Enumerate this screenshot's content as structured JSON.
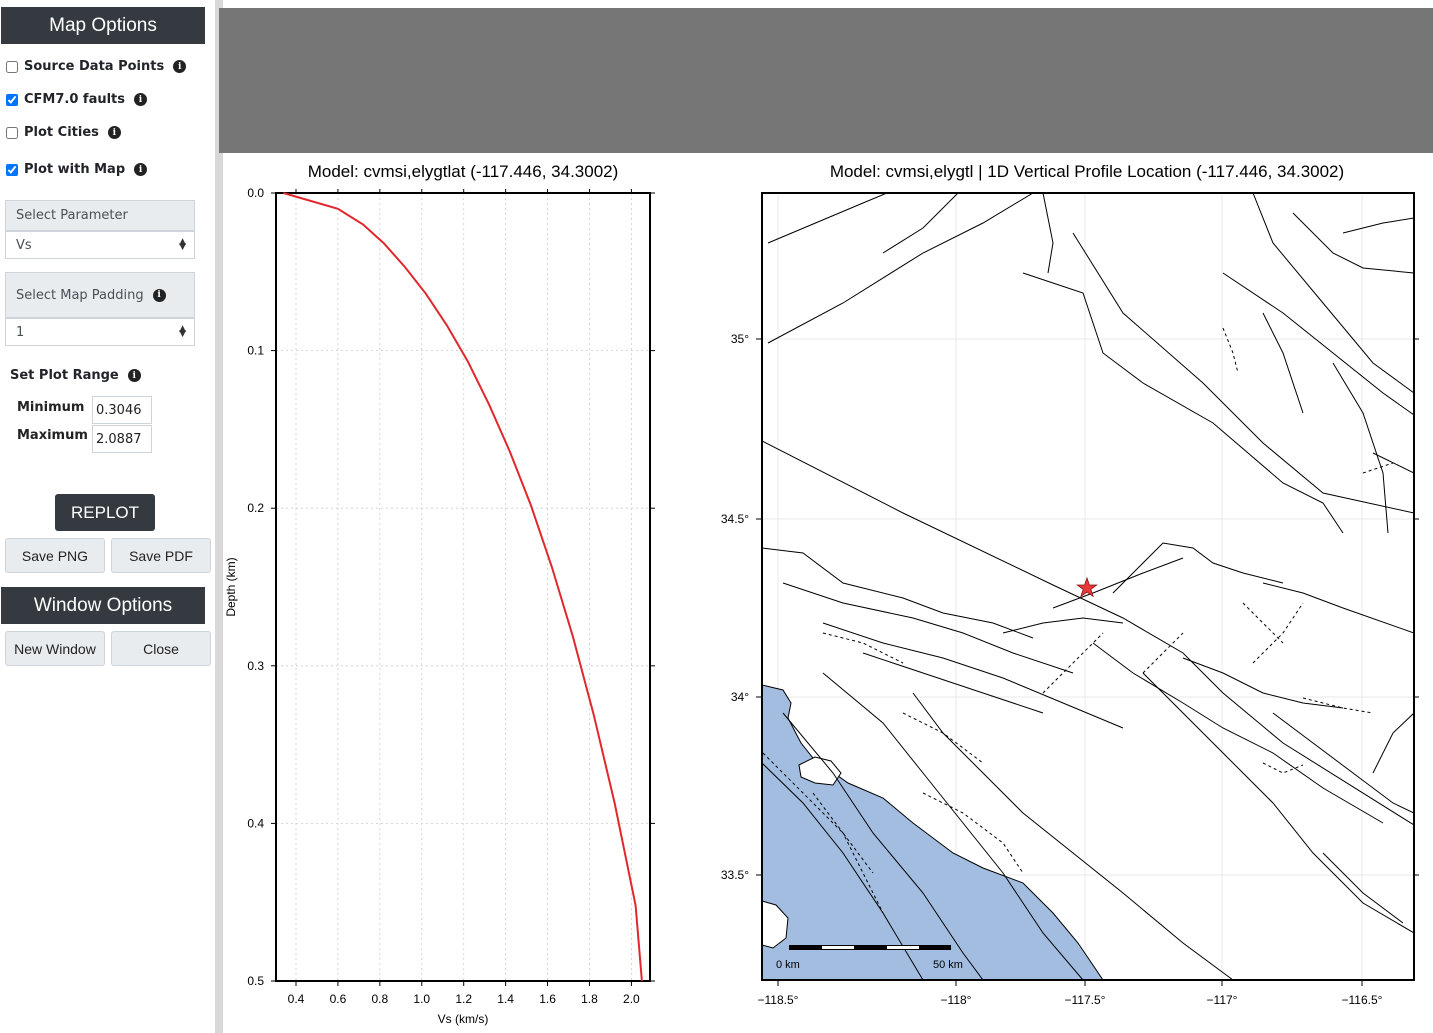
{
  "sidebar": {
    "map_options_title": "Map Options",
    "options": [
      {
        "label": "Source Data Points",
        "checked": false
      },
      {
        "label": "CFM7.0 faults",
        "checked": true
      },
      {
        "label": "Plot Cities",
        "checked": false
      },
      {
        "label": "Plot with Map",
        "checked": true
      }
    ],
    "select_parameter_label": "Select Parameter",
    "select_parameter_value": "Vs",
    "select_padding_label": "Select Map Padding",
    "select_padding_value": "1",
    "plot_range_label": "Set Plot Range",
    "minimum_label": "Minimum",
    "minimum_value": "0.3046",
    "maximum_label": "Maximum",
    "maximum_value": "2.0887",
    "replot_label": "REPLOT",
    "save_png_label": "Save PNG",
    "save_pdf_label": "Save PDF",
    "window_options_title": "Window Options",
    "new_window_label": "New Window",
    "close_label": "Close"
  },
  "colors": {
    "header_bg": "#343a40",
    "banner_bg": "#767676",
    "profile_line": "#e0282c",
    "ocean": "#a3bde0",
    "star": "#e83a3a"
  },
  "chart_data": [
    {
      "type": "line",
      "title": "Model: cvmsi,elygtlat (-117.446, 34.3002)",
      "xlabel": "Vs (km/s)",
      "ylabel": "Depth (km)",
      "xlim": [
        0.3046,
        2.0887
      ],
      "ylim": [
        0.5,
        0.0
      ],
      "x_ticks": [
        "0.4",
        "0.6",
        "0.8",
        "1.0",
        "1.2",
        "1.4",
        "1.6",
        "1.8",
        "2.0"
      ],
      "y_ticks": [
        "0.0",
        "0.1",
        "0.2",
        "0.3",
        "0.4",
        "0.5"
      ],
      "grid": true,
      "series": [
        {
          "x": [
            0.34,
            0.6,
            0.72,
            0.82,
            0.92,
            1.02,
            1.12,
            1.22,
            1.32,
            1.42,
            1.52,
            1.62,
            1.72,
            1.82,
            1.92,
            2.02,
            2.05
          ],
          "y": [
            0.0,
            0.01,
            0.02,
            0.032,
            0.047,
            0.064,
            0.084,
            0.107,
            0.134,
            0.164,
            0.198,
            0.237,
            0.281,
            0.331,
            0.387,
            0.452,
            0.5
          ]
        }
      ]
    },
    {
      "type": "map",
      "title": "Model: cvmsi,elygtl | 1D Vertical Profile Location (-117.446, 34.3002)",
      "lon_range": [
        -118.53,
        -116.33
      ],
      "lat_range": [
        33.22,
        35.41
      ],
      "lon_ticks": [
        "−118.5°",
        "−118°",
        "−117.5°",
        "−117°",
        "−116.5°"
      ],
      "lat_ticks": [
        "35°",
        "34.5°",
        "34°",
        "33.5°"
      ],
      "marker": {
        "lon": -117.446,
        "lat": 34.3002,
        "symbol": "star"
      },
      "scalebar_labels": [
        "0 km",
        "50 km"
      ]
    }
  ]
}
